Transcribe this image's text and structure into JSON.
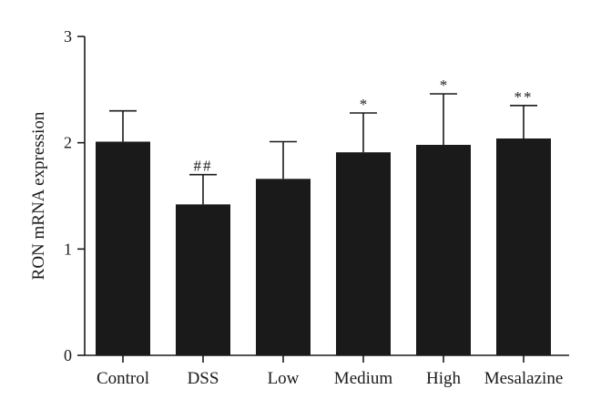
{
  "chart_data": {
    "type": "bar",
    "title": "",
    "xlabel": "",
    "ylabel": "RON mRNA expression",
    "ylim": [
      0,
      3
    ],
    "yticks": [
      0,
      1,
      2,
      3
    ],
    "categories": [
      "Control",
      "DSS",
      "Low",
      "Medium",
      "High",
      "Mesalazine"
    ],
    "values": [
      2.01,
      1.42,
      1.66,
      1.91,
      1.98,
      2.04
    ],
    "error_upper": [
      0.29,
      0.28,
      0.35,
      0.37,
      0.48,
      0.31
    ],
    "annotations": [
      "",
      "##",
      "",
      "*",
      "*",
      "**"
    ],
    "bar_color": "#1a1a1a",
    "grid": false,
    "legend": "none"
  }
}
